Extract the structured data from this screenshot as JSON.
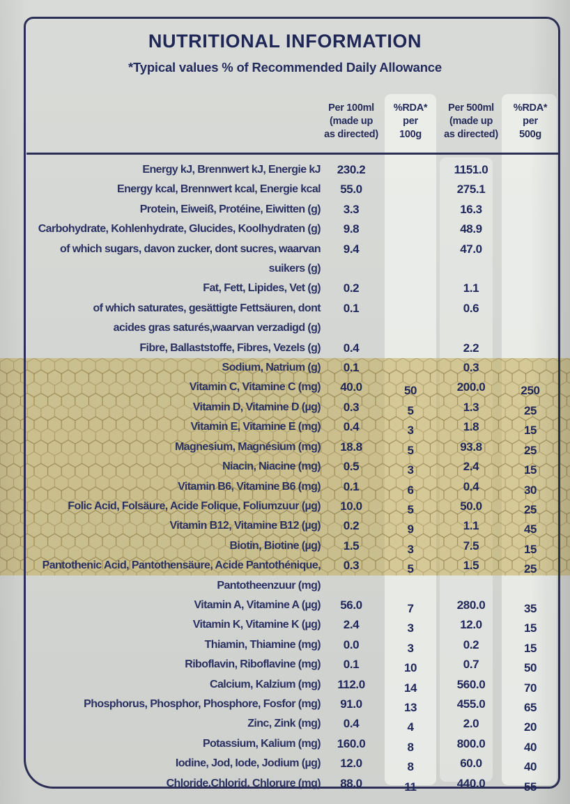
{
  "title": "NUTRITIONAL INFORMATION",
  "subtitle": "*Typical values % of Recommended Daily Allowance",
  "columns": [
    {
      "text": "Per 100ml\n(made up\nas directed)"
    },
    {
      "text": "%RDA*\nper\n100g"
    },
    {
      "text": "Per 500ml\n(made up\nas directed)"
    },
    {
      "text": "%RDA*\nper\n500g"
    }
  ],
  "colors": {
    "navy_text": "#242b58",
    "frame_border": "#2b2f55",
    "label_background": "#d4d6d3",
    "highlight_band": "#c7b254",
    "column_stripe": "#f4f6f1"
  },
  "rows": [
    {
      "label": "Energy kJ, Brennwert kJ, Energie kJ",
      "per100": "230.2",
      "rda100": "",
      "per500": "1151.0",
      "rda500": ""
    },
    {
      "label": "Energy kcal, Brennwert kcal, Energie kcal",
      "per100": "55.0",
      "rda100": "",
      "per500": "275.1",
      "rda500": ""
    },
    {
      "label": "Protein, Eiweiß, Protéine, Eiwitten (g)",
      "per100": "3.3",
      "rda100": "",
      "per500": "16.3",
      "rda500": ""
    },
    {
      "label": "Carbohydrate, Kohlenhydrate, Glucides, Koolhydraten (g)",
      "per100": "9.8",
      "rda100": "",
      "per500": "48.9",
      "rda500": ""
    },
    {
      "label": "of which sugars, davon zucker, dont sucres, waarvan suikers (g)",
      "per100": "9.4",
      "rda100": "",
      "per500": "47.0",
      "rda500": ""
    },
    {
      "label": "Fat, Fett, Lipides, Vet (g)",
      "per100": "0.2",
      "rda100": "",
      "per500": "1.1",
      "rda500": ""
    },
    {
      "label": "of which saturates, gesättigte Fettsäuren, dont",
      "label2": "acides gras saturés,waarvan verzadigd (g)",
      "per100": "0.1",
      "rda100": "",
      "per500": "0.6",
      "rda500": ""
    },
    {
      "label": "Fibre, Ballaststoffe, Fibres, Vezels (g)",
      "per100": "0.4",
      "rda100": "",
      "per500": "2.2",
      "rda500": ""
    },
    {
      "label": "Sodium, Natrium (g)",
      "per100": "0.1",
      "rda100": "",
      "per500": "0.3",
      "rda500": ""
    },
    {
      "label": "Vitamin C, Vitamine C (mg)",
      "per100": "40.0",
      "rda100": "50",
      "per500": "200.0",
      "rda500": "250",
      "highlighted": true
    },
    {
      "label": "Vitamin D, Vitamine D (µg)",
      "per100": "0.3",
      "rda100": "5",
      "per500": "1.3",
      "rda500": "25",
      "highlighted": true
    },
    {
      "label": "Vitamin E, Vitamine E (mg)",
      "per100": "0.4",
      "rda100": "3",
      "per500": "1.8",
      "rda500": "15",
      "highlighted": true
    },
    {
      "label": "Magnesium, Magnésium (mg)",
      "per100": "18.8",
      "rda100": "5",
      "per500": "93.8",
      "rda500": "25",
      "highlighted": true
    },
    {
      "label": "Niacin, Niacine (mg)",
      "per100": "0.5",
      "rda100": "3",
      "per500": "2.4",
      "rda500": "15",
      "highlighted": true
    },
    {
      "label": "Vitamin B6, Vitamine B6 (mg)",
      "per100": "0.1",
      "rda100": "6",
      "per500": "0.4",
      "rda500": "30",
      "highlighted": true
    },
    {
      "label": "Folic Acid, Folsäure, Acide Folique, Foliumzuur (µg)",
      "per100": "10.0",
      "rda100": "5",
      "per500": "50.0",
      "rda500": "25",
      "highlighted": true
    },
    {
      "label": "Vitamin B12, Vitamine B12 (µg)",
      "per100": "0.2",
      "rda100": "9",
      "per500": "1.1",
      "rda500": "45",
      "highlighted": true
    },
    {
      "label": "Biotin, Biotine (µg)",
      "per100": "1.5",
      "rda100": "3",
      "per500": "7.5",
      "rda500": "15",
      "highlighted": true
    },
    {
      "label": "Pantothenic Acid, Pantothensäure, Acide Pantothénique,",
      "label2": "Pantotheenzuur (mg)",
      "per100": "0.3",
      "rda100": "5",
      "per500": "1.5",
      "rda500": "25",
      "highlighted": true
    },
    {
      "label": "Vitamin A, Vitamine A (µg)",
      "per100": "56.0",
      "rda100": "7",
      "per500": "280.0",
      "rda500": "35"
    },
    {
      "label": "Vitamin K, Vitamine K (µg)",
      "per100": "2.4",
      "rda100": "3",
      "per500": "12.0",
      "rda500": "15"
    },
    {
      "label": "Thiamin, Thiamine (mg)",
      "per100": "0.0",
      "rda100": "3",
      "per500": "0.2",
      "rda500": "15"
    },
    {
      "label": "Riboflavin, Riboflavine (mg)",
      "per100": "0.1",
      "rda100": "10",
      "per500": "0.7",
      "rda500": "50"
    },
    {
      "label": "Calcium, Kalzium (mg)",
      "per100": "112.0",
      "rda100": "14",
      "per500": "560.0",
      "rda500": "70"
    },
    {
      "label": "Phosphorus, Phosphor, Phosphore, Fosfor (mg)",
      "per100": "91.0",
      "rda100": "13",
      "per500": "455.0",
      "rda500": "65"
    },
    {
      "label": "Zinc, Zink (mg)",
      "per100": "0.4",
      "rda100": "4",
      "per500": "2.0",
      "rda500": "20"
    },
    {
      "label": "Potassium, Kalium (mg)",
      "per100": "160.0",
      "rda100": "8",
      "per500": "800.0",
      "rda500": "40"
    },
    {
      "label": "Iodine, Jod, Iode, Jodium (µg)",
      "per100": "12.0",
      "rda100": "8",
      "per500": "60.0",
      "rda500": "40"
    },
    {
      "label": "Chloride,Chlorid, Chlorure (mg)",
      "per100": "88.0",
      "rda100": "11",
      "per500": "440.0",
      "rda500": "55"
    }
  ]
}
